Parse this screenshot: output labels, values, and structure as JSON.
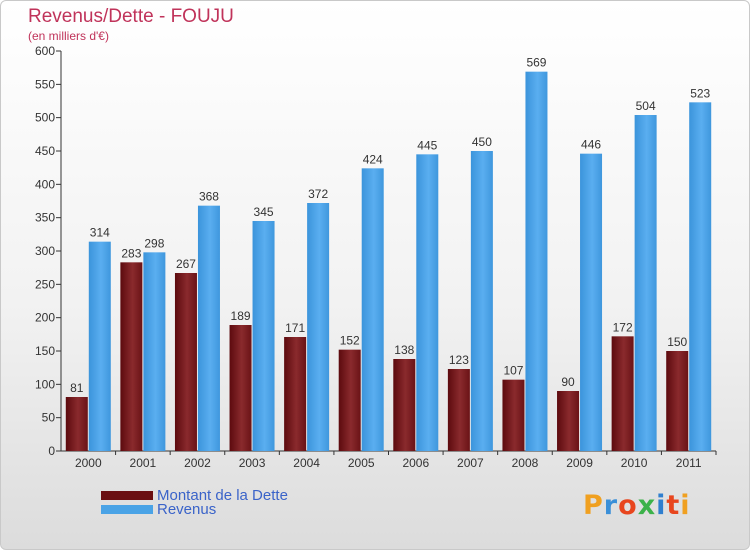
{
  "title": "Revenus/Dette - FOUJU",
  "subtitle": "(en milliers d'€)",
  "colors": {
    "dette": "#7a1f22",
    "revenus": "#4aa3e6",
    "title": "#c0335a",
    "legend_text": "#3a63c9"
  },
  "legend": [
    {
      "label": "Montant de la Dette",
      "color": "#6b0f12"
    },
    {
      "label": "Revenus",
      "color": "#4aa3e6"
    }
  ],
  "logo": {
    "text": "Proxiti"
  },
  "chart_data": {
    "type": "bar",
    "categories": [
      "2000",
      "2001",
      "2002",
      "2003",
      "2004",
      "2005",
      "2006",
      "2007",
      "2008",
      "2009",
      "2010",
      "2011"
    ],
    "series": [
      {
        "name": "Montant de la Dette",
        "values": [
          81,
          283,
          267,
          189,
          171,
          152,
          138,
          123,
          107,
          90,
          172,
          150
        ]
      },
      {
        "name": "Revenus",
        "values": [
          314,
          298,
          368,
          345,
          372,
          424,
          445,
          450,
          569,
          446,
          504,
          523
        ]
      }
    ],
    "ylim": [
      0,
      600
    ],
    "yticks": [
      0,
      50,
      100,
      150,
      200,
      250,
      300,
      350,
      400,
      450,
      500,
      550,
      600
    ],
    "grid": false
  }
}
